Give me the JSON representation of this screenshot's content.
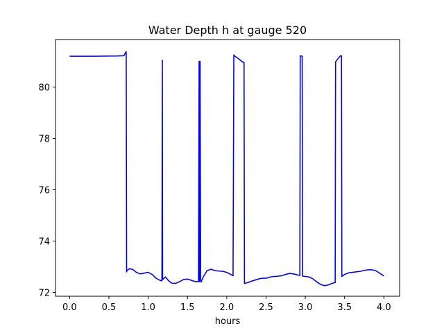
{
  "chart_data": {
    "type": "line",
    "title": "Water Depth h at gauge 520",
    "xlabel": "hours",
    "ylabel": "",
    "xlim": [
      -0.18,
      4.2
    ],
    "ylim": [
      71.85,
      81.85
    ],
    "x_ticks": [
      0.0,
      0.5,
      1.0,
      1.5,
      2.0,
      2.5,
      3.0,
      3.5,
      4.0
    ],
    "x_tick_labels": [
      "0.0",
      "0.5",
      "1.0",
      "1.5",
      "2.0",
      "2.5",
      "3.0",
      "3.5",
      "4.0"
    ],
    "y_ticks": [
      72,
      74,
      76,
      78,
      80
    ],
    "y_tick_labels": [
      "72",
      "74",
      "76",
      "78",
      "80"
    ],
    "grid": false,
    "legend": "none",
    "series": [
      {
        "color": "#0000ff",
        "x": [
          0.0,
          0.3,
          0.6,
          0.69,
          0.72,
          0.725,
          0.73,
          0.76,
          0.8,
          0.85,
          0.9,
          0.95,
          1.0,
          1.05,
          1.1,
          1.15,
          1.175,
          1.18,
          1.183,
          1.19,
          1.22,
          1.26,
          1.3,
          1.35,
          1.4,
          1.45,
          1.5,
          1.55,
          1.6,
          1.64,
          1.648,
          1.652,
          1.66,
          1.668,
          1.673,
          1.7,
          1.75,
          1.8,
          1.85,
          1.9,
          1.95,
          2.0,
          2.05,
          2.08,
          2.09,
          2.095,
          2.15,
          2.2,
          2.22,
          2.225,
          2.27,
          2.3,
          2.35,
          2.4,
          2.45,
          2.5,
          2.55,
          2.6,
          2.65,
          2.7,
          2.75,
          2.8,
          2.85,
          2.9,
          2.93,
          2.935,
          2.96,
          2.965,
          3.0,
          3.05,
          3.1,
          3.15,
          3.2,
          3.25,
          3.3,
          3.35,
          3.38,
          3.385,
          3.44,
          3.46,
          3.465,
          3.5,
          3.55,
          3.6,
          3.65,
          3.7,
          3.75,
          3.8,
          3.85,
          3.9,
          3.95,
          4.0
        ],
        "y": [
          81.2,
          81.2,
          81.21,
          81.22,
          81.38,
          72.8,
          72.85,
          72.92,
          72.9,
          72.78,
          72.72,
          72.75,
          72.78,
          72.7,
          72.55,
          72.47,
          72.45,
          81.05,
          72.5,
          72.52,
          72.6,
          72.45,
          72.36,
          72.35,
          72.42,
          72.5,
          72.52,
          72.47,
          72.42,
          72.42,
          81.0,
          72.42,
          81.0,
          72.45,
          72.4,
          72.6,
          72.85,
          72.9,
          72.85,
          72.83,
          72.82,
          72.78,
          72.7,
          72.65,
          81.25,
          81.22,
          81.1,
          80.98,
          80.96,
          72.35,
          72.38,
          72.42,
          72.47,
          72.52,
          72.55,
          72.55,
          72.6,
          72.62,
          72.63,
          72.65,
          72.7,
          72.74,
          72.72,
          72.68,
          72.66,
          81.22,
          81.2,
          72.63,
          72.62,
          72.6,
          72.52,
          72.4,
          72.3,
          72.26,
          72.3,
          72.36,
          72.38,
          80.98,
          81.2,
          81.22,
          72.62,
          72.7,
          72.76,
          72.78,
          72.8,
          72.82,
          72.86,
          72.88,
          72.88,
          72.84,
          72.74,
          72.64
        ]
      }
    ]
  }
}
